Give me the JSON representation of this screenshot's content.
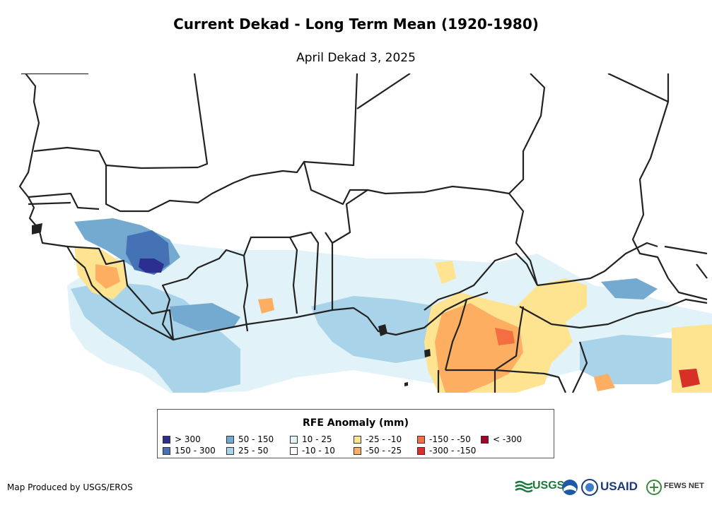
{
  "header": {
    "title": "Current Dekad - Long Term Mean (1920-1980)",
    "subtitle": "April Dekad 3, 2025"
  },
  "legend": {
    "title": "RFE Anomaly (mm)",
    "items": [
      {
        "label": "> 300",
        "color": "#2c2f8f"
      },
      {
        "label": "150 - 300",
        "color": "#4472b4"
      },
      {
        "label": "50 - 150",
        "color": "#74a9d0"
      },
      {
        "label": "25 - 50",
        "color": "#a9d3e8"
      },
      {
        "label": "10 - 25",
        "color": "#e1f2f8"
      },
      {
        "label": "-10 - 10",
        "color": "#ffffff"
      },
      {
        "label": "-25 - -10",
        "color": "#fee391"
      },
      {
        "label": "-50 - -25",
        "color": "#fdae61"
      },
      {
        "label": "-150 - -50",
        "color": "#f46d43"
      },
      {
        "label": "-300 - -150",
        "color": "#d73027"
      },
      {
        "label": "< -300",
        "color": "#a50026"
      }
    ]
  },
  "footer": {
    "credit": "Map Produced by USGS/EROS",
    "logos": [
      {
        "text": "USGS",
        "icon": "usgs-logo-icon"
      },
      {
        "text": "",
        "icon": "noaa-logo-icon"
      },
      {
        "text": "",
        "icon": "nasa-seal-icon"
      },
      {
        "text": "USAID",
        "icon": "usaid-logo-icon"
      },
      {
        "text": "FEWS NET",
        "icon": "fewsnet-logo-icon"
      }
    ]
  }
}
